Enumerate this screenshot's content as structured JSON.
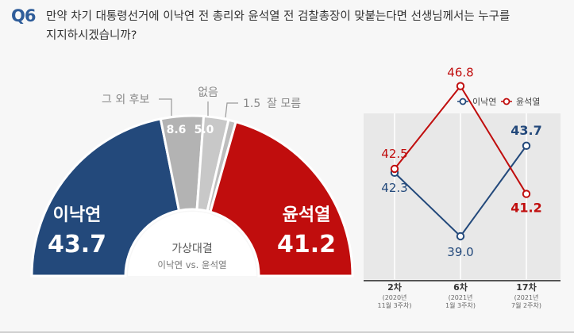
{
  "question": {
    "number": "Q6",
    "line1": "만약 차기 대통령선거에 이낙연 전 총리와 윤석열 전 검찰총장이 맞붙는다면 선생님께서는 누구를",
    "line2": "지지하시겠습니까?"
  },
  "colors": {
    "lee": "#23497b",
    "yoon": "#c00d0d",
    "other": "#b3b3b3",
    "none": "#c8c8c8",
    "dontknow": "#c0c0c0"
  },
  "chart_data": [
    {
      "type": "pie",
      "shape": "semicircle",
      "center_label": {
        "line1": "가상대결",
        "line2": "이낙연 vs. 윤석열"
      },
      "slices": [
        {
          "label": "이낙연",
          "value": 43.7,
          "value_text": "43.7",
          "color": "#23497b"
        },
        {
          "label": "그 외 후보",
          "value": 8.6,
          "value_text": "8.6",
          "color": "#b3b3b3"
        },
        {
          "label": "없음",
          "value": 5.0,
          "value_text": "5.0",
          "color": "#c8c8c8"
        },
        {
          "label": "잘 모름",
          "value": 1.5,
          "value_text": "1.5",
          "color": "#bdbdbd"
        },
        {
          "label": "윤석열",
          "value": 41.2,
          "value_text": "41.2",
          "color": "#c00d0d"
        }
      ]
    },
    {
      "type": "line",
      "legend_position": "top-right",
      "categories": [
        {
          "label": "2차",
          "sub1": "(2020년",
          "sub2": "11월 3주차)"
        },
        {
          "label": "6차",
          "sub1": "(2021년",
          "sub2": "1월 3주차)"
        },
        {
          "label": "17차",
          "sub1": "(2021년",
          "sub2": "7월 2주차)"
        }
      ],
      "series": [
        {
          "name": "이낙연",
          "values": [
            42.3,
            39.0,
            43.7
          ],
          "labels": [
            "42.3",
            "39.0",
            "43.7"
          ],
          "color": "#23497b"
        },
        {
          "name": "윤석열",
          "values": [
            42.5,
            46.8,
            41.2
          ],
          "labels": [
            "42.5",
            "46.8",
            "41.2"
          ],
          "color": "#c00d0d"
        }
      ]
    }
  ]
}
